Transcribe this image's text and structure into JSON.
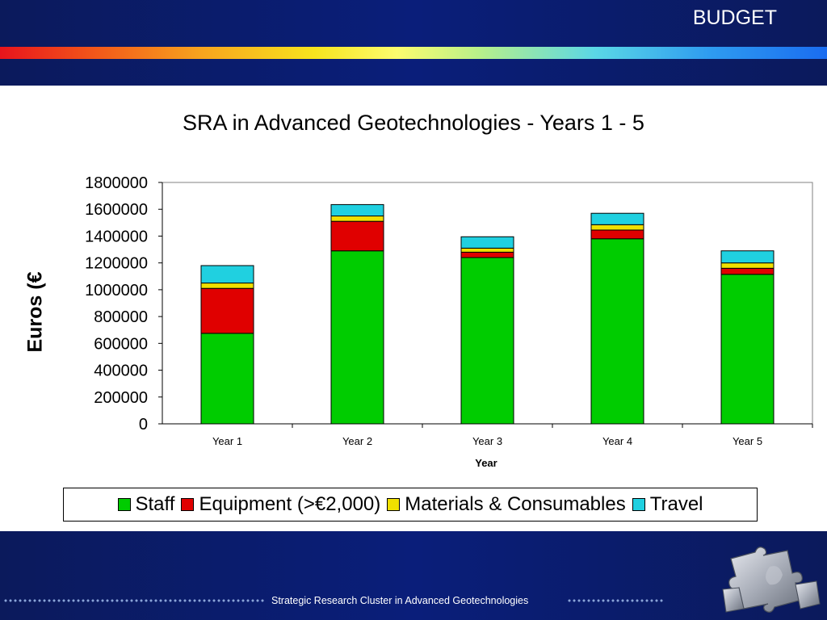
{
  "header": {
    "title": "BUDGET"
  },
  "footer": {
    "text": "Strategic Research Cluster in Advanced Geotechnologies"
  },
  "colors": {
    "header_bg": "#0b1a5c",
    "Staff": "#00cc00",
    "Equipment": "#e00000",
    "Materials": "#f0e000",
    "Travel": "#20d0e0"
  },
  "chart_data": {
    "type": "bar",
    "stacked": true,
    "title": "SRA in Advanced Geotechnologies - Years 1 - 5",
    "xlabel": "Year",
    "ylabel": "Euros (€",
    "ylim": [
      0,
      1800000
    ],
    "yticks": [
      "0",
      "200000",
      "400000",
      "600000",
      "800000",
      "1000000",
      "1200000",
      "1400000",
      "1600000",
      "1800000"
    ],
    "categories": [
      "Year 1",
      "Year 2",
      "Year 3",
      "Year 4",
      "Year 5"
    ],
    "series": [
      {
        "name": "Staff",
        "color": "#00cc00",
        "values": [
          675000,
          1290000,
          1240000,
          1380000,
          1115000
        ]
      },
      {
        "name": "Equipment (>€2,000)",
        "color": "#e00000",
        "values": [
          335000,
          220000,
          40000,
          65000,
          45000
        ]
      },
      {
        "name": "Materials & Consumables",
        "color": "#f0e000",
        "values": [
          40000,
          40000,
          30000,
          40000,
          40000
        ]
      },
      {
        "name": "Travel",
        "color": "#20d0e0",
        "values": [
          130000,
          85000,
          85000,
          85000,
          90000
        ]
      }
    ],
    "legend_position": "bottom",
    "grid": false
  }
}
